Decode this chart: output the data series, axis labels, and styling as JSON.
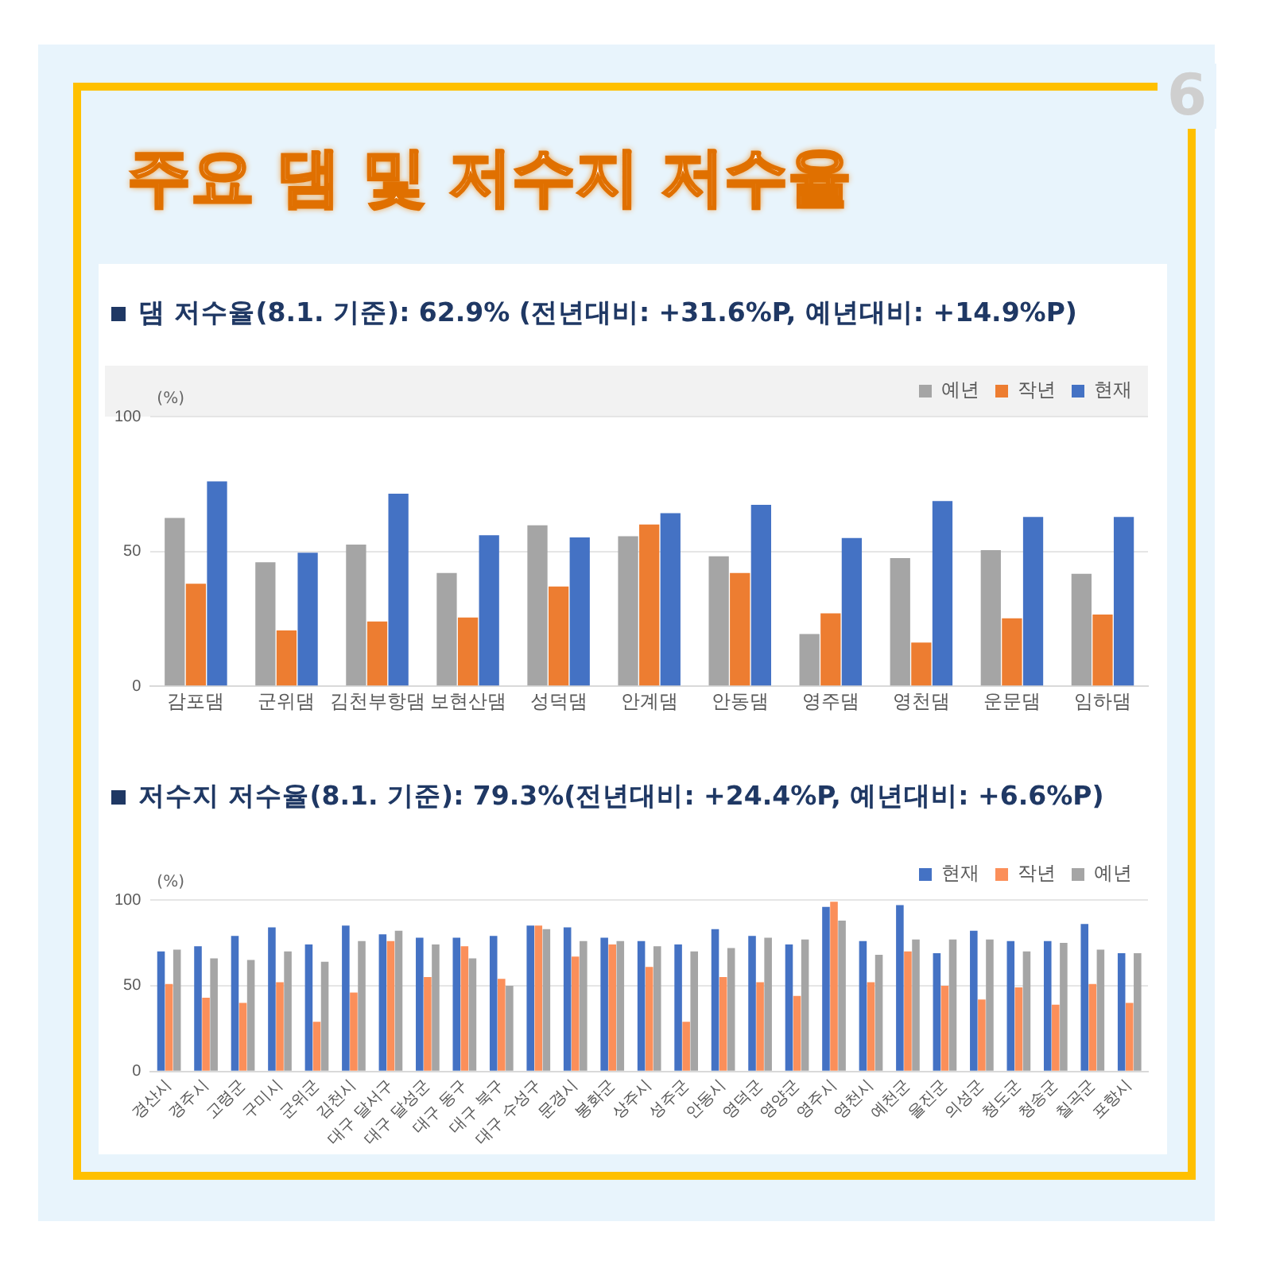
{
  "chart_data": [
    {
      "type": "bar",
      "title": "댐 저수율(8.1. 기준): 62.9% (전년대비: +31.6%P, 예년대비: +14.9%P)",
      "ylabel": "(%)",
      "annotations": [
        "주요 댐 및 저수지 저수율",
        "6"
      ],
      "categories": [
        "감포댐",
        "군위댐",
        "김천부항댐",
        "보현산댐",
        "성덕댐",
        "안계댐",
        "안동댐",
        "영주댐",
        "영천댐",
        "운문댐",
        "임하댐"
      ],
      "series": [
        {
          "name": "예년",
          "color": "#a5a5a5",
          "values": [
            62.4,
            46,
            52.5,
            42,
            59.7,
            55.6,
            48.2,
            19.4,
            47.5,
            50.5,
            41.7
          ]
        },
        {
          "name": "작년",
          "color": "#ed7d31",
          "values": [
            38,
            20.7,
            24,
            25.5,
            37,
            60,
            42,
            27,
            16.2,
            25.2,
            26.6
          ]
        },
        {
          "name": "현재",
          "color": "#4472c4",
          "values": [
            76,
            49.5,
            71.4,
            56,
            55.2,
            64.2,
            67.3,
            55,
            68.7,
            62.8,
            62.8
          ]
        }
      ],
      "ylim": [
        0,
        100
      ],
      "yticks": [
        0,
        50,
        100
      ],
      "grid": "y",
      "legend": "top right"
    },
    {
      "type": "bar",
      "title": "저수지 저수율(8.1. 기준): 79.3%(전년대비: +24.4%P, 예년대비: +6.6%P)",
      "ylabel": "(%)",
      "categories": [
        "경산시",
        "경주시",
        "고령군",
        "구미시",
        "군위군",
        "김천시",
        "대구 달서구",
        "대구 달성군",
        "대구 동구",
        "대구 북구",
        "대구 수성구",
        "문경시",
        "봉화군",
        "상주시",
        "성주군",
        "안동시",
        "영덕군",
        "영양군",
        "영주시",
        "영천시",
        "예천군",
        "울진군",
        "의성군",
        "청도군",
        "청송군",
        "칠곡군",
        "포항시"
      ],
      "series": [
        {
          "name": "현재",
          "color": "#4472c4",
          "values": [
            70,
            73,
            79,
            84,
            74,
            85,
            80,
            78,
            78,
            79,
            85,
            84,
            78,
            76,
            74,
            83,
            79,
            74,
            96,
            76,
            97,
            69,
            82,
            76,
            76,
            86,
            69
          ]
        },
        {
          "name": "작년",
          "color": "#fb8f5a",
          "values": [
            51,
            43,
            40,
            52,
            29,
            46,
            76,
            55,
            73,
            54,
            85,
            67,
            74,
            61,
            29,
            55,
            52,
            44,
            99,
            52,
            70,
            50,
            42,
            49,
            39,
            51,
            40
          ]
        },
        {
          "name": "예년",
          "color": "#a5a5a5",
          "values": [
            71,
            66,
            65,
            70,
            64,
            76,
            82,
            74,
            66,
            50,
            83,
            76,
            76,
            73,
            70,
            72,
            78,
            77,
            88,
            68,
            77,
            77,
            77,
            70,
            75,
            71,
            69
          ]
        }
      ],
      "ylim": [
        0,
        100
      ],
      "yticks": [
        0,
        50,
        100
      ],
      "grid": "y",
      "legend": "top right"
    }
  ]
}
